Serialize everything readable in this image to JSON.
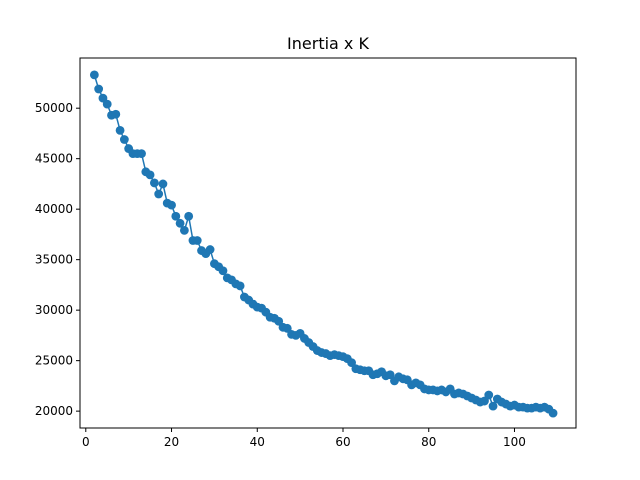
{
  "chart_data": {
    "type": "line",
    "title": "Inertia x K",
    "xlabel": "",
    "ylabel": "",
    "xlim": [
      -1.35,
      114.35
    ],
    "ylim": [
      18330,
      54970
    ],
    "xticks": [
      0,
      20,
      40,
      60,
      80,
      100
    ],
    "yticks": [
      20000,
      25000,
      30000,
      35000,
      40000,
      45000,
      50000
    ],
    "grid": false,
    "marker": "circle",
    "color": "#1f77b4",
    "series": [
      {
        "x": [
          2,
          3,
          4,
          5,
          6,
          7,
          8,
          9,
          10,
          11,
          12,
          13,
          14,
          15,
          16,
          17,
          18,
          19,
          20,
          21,
          22,
          23,
          24,
          25,
          26,
          27,
          28,
          29,
          30,
          31,
          32,
          33,
          34,
          35,
          36,
          37,
          38,
          39,
          40,
          41,
          42,
          43,
          44,
          45,
          46,
          47,
          48,
          49,
          50,
          51,
          52,
          53,
          54,
          55,
          56,
          57,
          58,
          59,
          60,
          61,
          62,
          63,
          64,
          65,
          66,
          67,
          68,
          69,
          70,
          71,
          72,
          73,
          74,
          75,
          76,
          77,
          78,
          79,
          80,
          81,
          82,
          83,
          84,
          85,
          86,
          87,
          88,
          89,
          90,
          91,
          92,
          93,
          94,
          95,
          96,
          97,
          98,
          99,
          100,
          101,
          102,
          103,
          104,
          105,
          106,
          107,
          108,
          109
        ],
        "y": [
          53300,
          51900,
          51000,
          50400,
          49300,
          49400,
          47800,
          46900,
          46000,
          45500,
          45500,
          45500,
          43700,
          43400,
          42600,
          41500,
          42500,
          40600,
          40400,
          39300,
          38600,
          37900,
          39300,
          36900,
          36900,
          35900,
          35600,
          36000,
          34600,
          34300,
          33900,
          33200,
          33000,
          32600,
          32400,
          31300,
          31000,
          30600,
          30300,
          30200,
          29800,
          29300,
          29200,
          28900,
          28300,
          28200,
          27600,
          27500,
          27700,
          27200,
          26800,
          26400,
          26000,
          25800,
          25700,
          25500,
          25600,
          25500,
          25400,
          25200,
          24800,
          24200,
          24100,
          24000,
          24000,
          23600,
          23700,
          23900,
          23500,
          23600,
          23000,
          23400,
          23200,
          23100,
          22600,
          22800,
          22600,
          22200,
          22100,
          22100,
          22000,
          22100,
          21900,
          22200,
          21700,
          21800,
          21700,
          21500,
          21300,
          21100,
          20900,
          21000,
          21600,
          20500,
          21200,
          20900,
          20700,
          20500,
          20600,
          20400,
          20400,
          20300,
          20300,
          20400,
          20300,
          20400,
          20200,
          19800
        ]
      }
    ]
  }
}
